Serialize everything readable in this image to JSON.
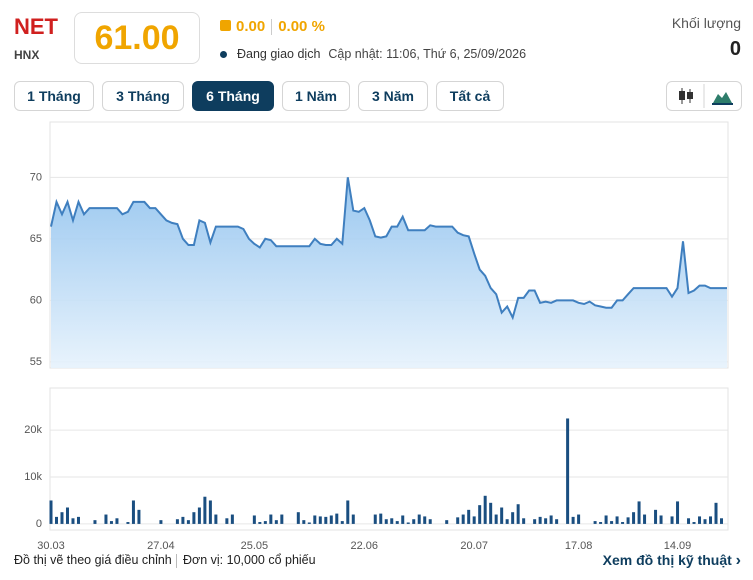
{
  "header": {
    "symbol": "NET",
    "exchange": "HNX",
    "price": "61.00",
    "change": "0.00",
    "change_pct": "0.00 %",
    "status": "Đang giao dịch",
    "updated": "Cập nhật: 11:06, Thứ 6, 25/09/2026",
    "volume_label": "Khối lượng",
    "volume": "0"
  },
  "buttons": [
    "1 Tháng",
    "3 Tháng",
    "6 Tháng",
    "1 Năm",
    "3 Năm",
    "Tất cả"
  ],
  "footer": {
    "note": "Đồ thị vẽ theo giá điều chỉnh",
    "unit": "Đơn vị: 10,000 cổ phiếu",
    "link": "Xem đồ thị kỹ thuật"
  },
  "chart_data": [
    {
      "type": "area",
      "color": "#3f7fbf",
      "ylim": [
        54.5,
        74.5
      ],
      "yticks": [
        55,
        60,
        65,
        70
      ],
      "grid": true,
      "values": [
        66,
        68,
        67,
        68,
        66.5,
        68,
        67,
        67.5,
        67.5,
        67.5,
        67.5,
        67.5,
        67.5,
        67,
        67.2,
        68,
        68,
        68,
        67.5,
        67.5,
        67,
        66.5,
        66.3,
        66.2,
        65,
        64.5,
        64.5,
        66.5,
        66.3,
        64.7,
        66,
        66,
        66,
        66,
        66,
        65.8,
        65,
        64.6,
        64.3,
        65,
        64.9,
        64.4,
        64.4,
        64.4,
        64.4,
        64.4,
        64.4,
        64.4,
        65,
        64.6,
        64.5,
        64.5,
        65,
        64.6,
        70,
        67.3,
        67.2,
        67.5,
        66.5,
        65.2,
        65.1,
        65.2,
        66,
        66,
        66.8,
        65.7,
        65.7,
        65.7,
        65.7,
        66.1,
        66,
        66,
        66,
        66,
        65.5,
        65.3,
        65.2,
        63.8,
        62.5,
        62,
        61,
        60.5,
        59,
        59.5,
        58.6,
        60.2,
        60.2,
        60.8,
        60.8,
        59.8,
        59.9,
        59.8,
        60,
        60,
        60,
        60,
        59.8,
        59.7,
        59.9,
        59.6,
        59.5,
        59.4,
        59.4,
        60,
        60,
        60.5,
        61,
        61,
        61,
        61,
        61,
        61,
        61,
        60.3,
        61,
        64.8,
        60.6,
        60.8,
        61.2,
        61.2,
        61,
        61,
        61,
        61
      ]
    },
    {
      "type": "bar",
      "color": "#1a4e80",
      "ylim": [
        -1300,
        29000
      ],
      "yticks": [
        {
          "value": 0,
          "label": "0"
        },
        {
          "value": 10000,
          "label": "10k"
        },
        {
          "value": 20000,
          "label": "20k"
        }
      ],
      "grid": true,
      "categories": [
        "30.03",
        null,
        null,
        null,
        null,
        null,
        null,
        null,
        null,
        null,
        null,
        null,
        null,
        null,
        null,
        null,
        null,
        null,
        null,
        null,
        "27.04",
        null,
        null,
        null,
        null,
        null,
        null,
        null,
        null,
        null,
        null,
        null,
        null,
        null,
        null,
        null,
        null,
        "25.05",
        null,
        null,
        null,
        null,
        null,
        null,
        null,
        null,
        null,
        null,
        null,
        null,
        null,
        null,
        null,
        null,
        null,
        null,
        null,
        "22.06",
        null,
        null,
        null,
        null,
        null,
        null,
        null,
        null,
        null,
        null,
        null,
        null,
        null,
        null,
        null,
        null,
        null,
        null,
        null,
        "20.07",
        null,
        null,
        null,
        null,
        null,
        null,
        null,
        null,
        null,
        null,
        null,
        null,
        null,
        null,
        null,
        null,
        null,
        null,
        "17.08",
        null,
        null,
        null,
        null,
        null,
        null,
        null,
        null,
        null,
        null,
        null,
        null,
        null,
        null,
        null,
        null,
        null,
        "14.09",
        null,
        null,
        null,
        null,
        null,
        null,
        null,
        null,
        null
      ],
      "values": [
        5000,
        1500,
        2500,
        3500,
        1200,
        1500,
        0,
        0,
        800,
        0,
        2000,
        600,
        1200,
        0,
        400,
        5000,
        3000,
        0,
        0,
        0,
        800,
        0,
        0,
        1000,
        1500,
        800,
        2500,
        3500,
        5800,
        5000,
        2000,
        0,
        1200,
        2000,
        0,
        0,
        0,
        1800,
        400,
        600,
        2000,
        800,
        2000,
        0,
        0,
        2500,
        800,
        300,
        1800,
        1600,
        1500,
        1800,
        2200,
        600,
        5000,
        2000,
        0,
        0,
        0,
        2000,
        2200,
        1000,
        1200,
        600,
        1800,
        300,
        1000,
        2000,
        1600,
        1000,
        0,
        0,
        800,
        0,
        1400,
        2000,
        3000,
        1600,
        4000,
        6000,
        4500,
        2000,
        3500,
        1000,
        2500,
        4200,
        1200,
        0,
        1000,
        1500,
        1200,
        1800,
        1000,
        0,
        22500,
        1500,
        2000,
        0,
        0,
        600,
        400,
        1800,
        600,
        1600,
        400,
        1400,
        2500,
        4800,
        2000,
        0,
        3000,
        1800,
        0,
        1600,
        4800,
        0,
        1200,
        400,
        1600,
        1000,
        1600,
        4500,
        1200,
        0
      ]
    }
  ]
}
